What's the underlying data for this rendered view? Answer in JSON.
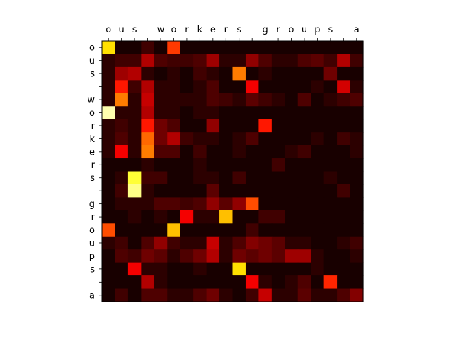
{
  "chart_data": {
    "type": "heatmap",
    "x_labels": [
      "o",
      "u",
      "s",
      " ",
      "w",
      "o",
      "r",
      "k",
      "e",
      "r",
      "s",
      " ",
      "g",
      "r",
      "o",
      "u",
      "p",
      "s",
      " ",
      "a"
    ],
    "y_labels": [
      "o",
      "u",
      "s",
      " ",
      "w",
      "o",
      "r",
      "k",
      "e",
      "r",
      "s",
      " ",
      "g",
      "r",
      "o",
      "u",
      "p",
      "s",
      " ",
      "a"
    ],
    "colormap": "hot",
    "value_range": [
      0,
      1
    ],
    "values": [
      [
        0.7,
        0.02,
        0.02,
        0.08,
        0.02,
        0.45,
        0.02,
        0.02,
        0.02,
        0.02,
        0.02,
        0.02,
        0.02,
        0.02,
        0.02,
        0.02,
        0.02,
        0.02,
        0.02,
        0.02
      ],
      [
        0.05,
        0.08,
        0.08,
        0.25,
        0.1,
        0.08,
        0.08,
        0.1,
        0.22,
        0.05,
        0.05,
        0.2,
        0.1,
        0.05,
        0.05,
        0.1,
        0.12,
        0.08,
        0.25,
        0.08
      ],
      [
        0.05,
        0.22,
        0.25,
        0.05,
        0.02,
        0.05,
        0.02,
        0.08,
        0.05,
        0.02,
        0.55,
        0.02,
        0.05,
        0.02,
        0.02,
        0.02,
        0.02,
        0.15,
        0.02,
        0.02
      ],
      [
        0.05,
        0.4,
        0.08,
        0.25,
        0.05,
        0.05,
        0.02,
        0.05,
        0.1,
        0.02,
        0.02,
        0.35,
        0.02,
        0.02,
        0.02,
        0.02,
        0.05,
        0.02,
        0.3,
        0.05
      ],
      [
        0.05,
        0.55,
        0.05,
        0.28,
        0.05,
        0.05,
        0.05,
        0.05,
        0.1,
        0.08,
        0.05,
        0.12,
        0.08,
        0.05,
        0.02,
        0.1,
        0.02,
        0.05,
        0.08,
        0.1
      ],
      [
        0.92,
        0.05,
        0.05,
        0.25,
        0.05,
        0.05,
        0.02,
        0.05,
        0.05,
        0.02,
        0.02,
        0.02,
        0.02,
        0.02,
        0.02,
        0.02,
        0.02,
        0.02,
        0.02,
        0.02
      ],
      [
        0.05,
        0.08,
        0.05,
        0.4,
        0.15,
        0.1,
        0.02,
        0.02,
        0.2,
        0.02,
        0.02,
        0.02,
        0.4,
        0.02,
        0.02,
        0.02,
        0.02,
        0.02,
        0.02,
        0.02
      ],
      [
        0.05,
        0.1,
        0.05,
        0.52,
        0.15,
        0.25,
        0.08,
        0.05,
        0.05,
        0.02,
        0.05,
        0.1,
        0.02,
        0.02,
        0.02,
        0.02,
        0.05,
        0.02,
        0.08,
        0.05
      ],
      [
        0.05,
        0.35,
        0.05,
        0.55,
        0.1,
        0.1,
        0.02,
        0.08,
        0.02,
        0.02,
        0.05,
        0.02,
        0.02,
        0.02,
        0.05,
        0.08,
        0.02,
        0.02,
        0.02,
        0.05
      ],
      [
        0.02,
        0.02,
        0.02,
        0.05,
        0.02,
        0.02,
        0.02,
        0.05,
        0.02,
        0.02,
        0.02,
        0.02,
        0.02,
        0.08,
        0.02,
        0.02,
        0.02,
        0.02,
        0.02,
        0.02
      ],
      [
        0.02,
        0.05,
        0.8,
        0.08,
        0.08,
        0.02,
        0.02,
        0.05,
        0.05,
        0.02,
        0.08,
        0.02,
        0.02,
        0.02,
        0.02,
        0.02,
        0.02,
        0.05,
        0.02,
        0.02
      ],
      [
        0.02,
        0.08,
        0.88,
        0.05,
        0.02,
        0.02,
        0.02,
        0.02,
        0.12,
        0.02,
        0.02,
        0.02,
        0.02,
        0.02,
        0.02,
        0.02,
        0.02,
        0.02,
        0.08,
        0.02
      ],
      [
        0.02,
        0.05,
        0.05,
        0.05,
        0.1,
        0.1,
        0.08,
        0.1,
        0.2,
        0.12,
        0.2,
        0.48,
        0.02,
        0.02,
        0.02,
        0.02,
        0.02,
        0.02,
        0.02,
        0.02
      ],
      [
        0.02,
        0.02,
        0.05,
        0.02,
        0.05,
        0.02,
        0.35,
        0.05,
        0.05,
        0.65,
        0.02,
        0.02,
        0.08,
        0.08,
        0.02,
        0.02,
        0.02,
        0.02,
        0.02,
        0.02
      ],
      [
        0.48,
        0.02,
        0.02,
        0.02,
        0.02,
        0.65,
        0.02,
        0.02,
        0.02,
        0.02,
        0.02,
        0.08,
        0.02,
        0.02,
        0.02,
        0.02,
        0.02,
        0.02,
        0.02,
        0.02
      ],
      [
        0.05,
        0.08,
        0.02,
        0.1,
        0.2,
        0.08,
        0.05,
        0.05,
        0.28,
        0.05,
        0.1,
        0.18,
        0.15,
        0.12,
        0.05,
        0.05,
        0.02,
        0.02,
        0.05,
        0.08
      ],
      [
        0.02,
        0.1,
        0.08,
        0.15,
        0.12,
        0.05,
        0.1,
        0.15,
        0.25,
        0.05,
        0.15,
        0.12,
        0.15,
        0.12,
        0.22,
        0.22,
        0.05,
        0.02,
        0.02,
        0.05
      ],
      [
        0.02,
        0.02,
        0.35,
        0.05,
        0.05,
        0.02,
        0.02,
        0.05,
        0.02,
        0.02,
        0.7,
        0.02,
        0.02,
        0.02,
        0.02,
        0.02,
        0.05,
        0.02,
        0.02,
        0.02
      ],
      [
        0.02,
        0.02,
        0.02,
        0.25,
        0.05,
        0.02,
        0.02,
        0.02,
        0.02,
        0.02,
        0.02,
        0.35,
        0.05,
        0.02,
        0.05,
        0.1,
        0.02,
        0.42,
        0.02,
        0.02
      ],
      [
        0.02,
        0.08,
        0.02,
        0.1,
        0.1,
        0.05,
        0.05,
        0.1,
        0.15,
        0.05,
        0.02,
        0.08,
        0.28,
        0.05,
        0.05,
        0.12,
        0.05,
        0.05,
        0.1,
        0.18
      ]
    ]
  }
}
